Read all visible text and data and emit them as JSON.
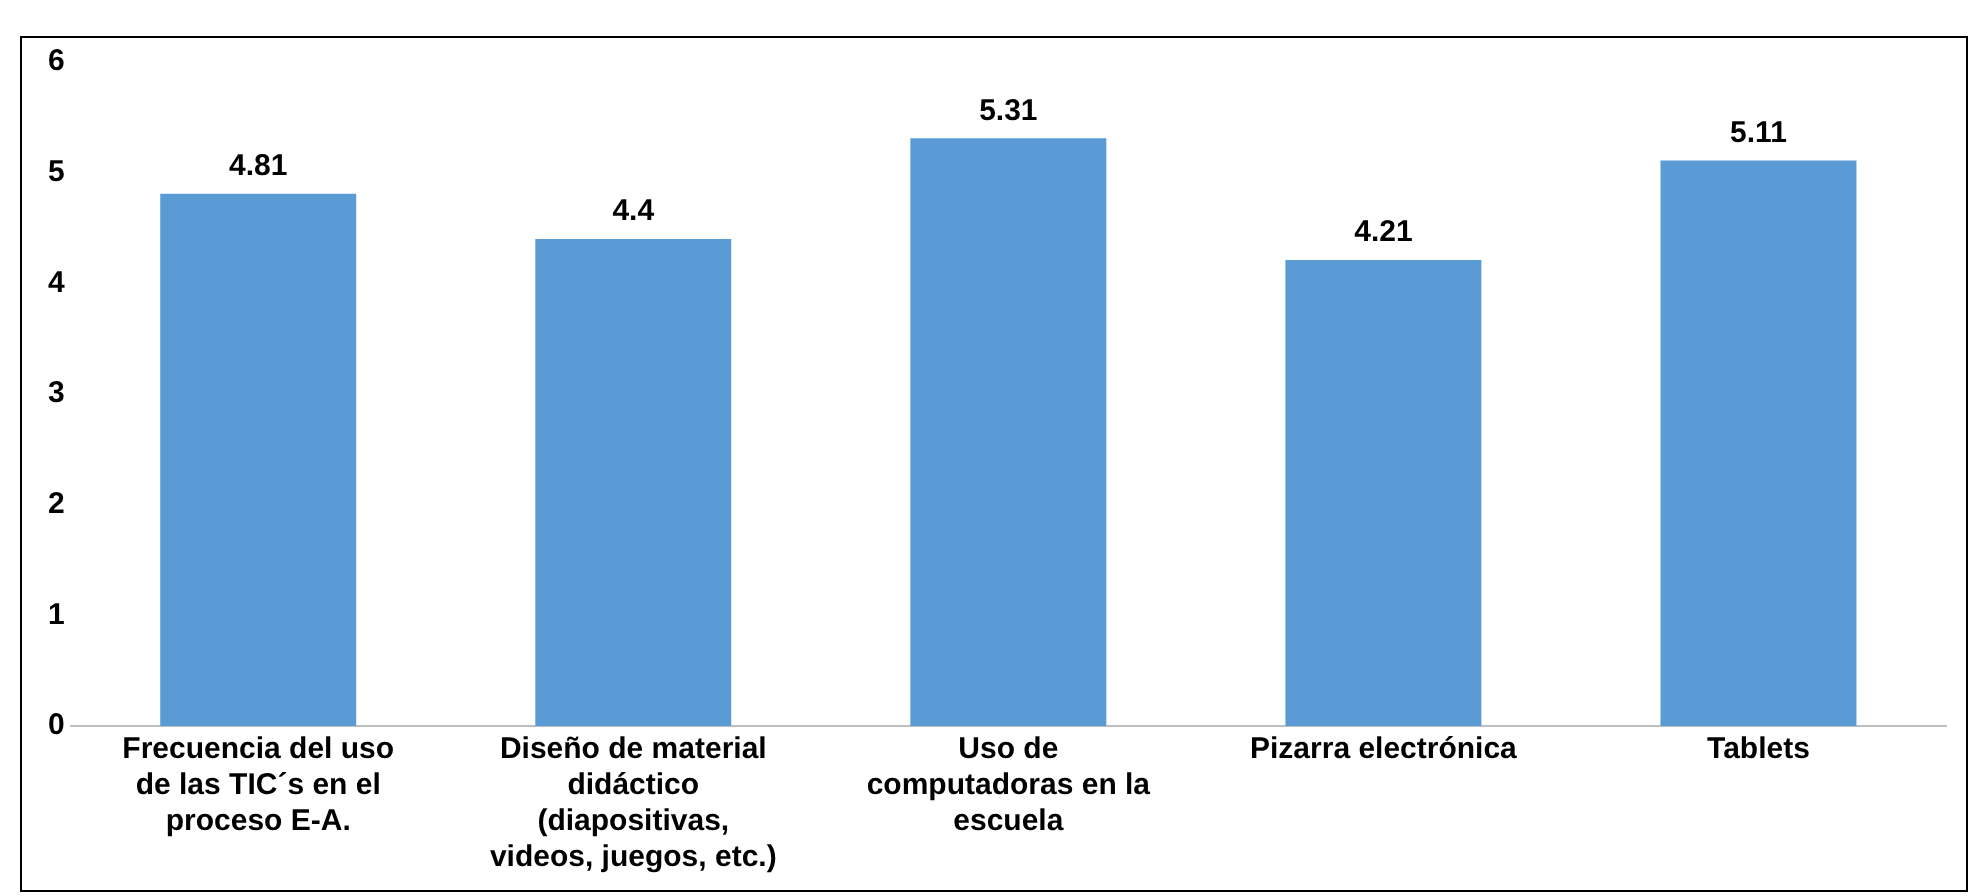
{
  "chart_data": {
    "type": "bar",
    "categories": [
      "Frecuencia del uso de las TIC´s en el proceso E-A.",
      "Diseño de material didáctico (diapositivas, videos, juegos, etc.)",
      "Uso de computadoras en la escuela",
      "Pizarra electrónica",
      "Tablets"
    ],
    "values": [
      4.81,
      4.4,
      5.31,
      4.21,
      5.11
    ],
    "color": "#5b9bd5",
    "ylim": [
      0,
      6
    ],
    "yticks": [
      0,
      1,
      2,
      3,
      4,
      5,
      6
    ],
    "grid": false,
    "data_labels": true,
    "legend": false
  }
}
